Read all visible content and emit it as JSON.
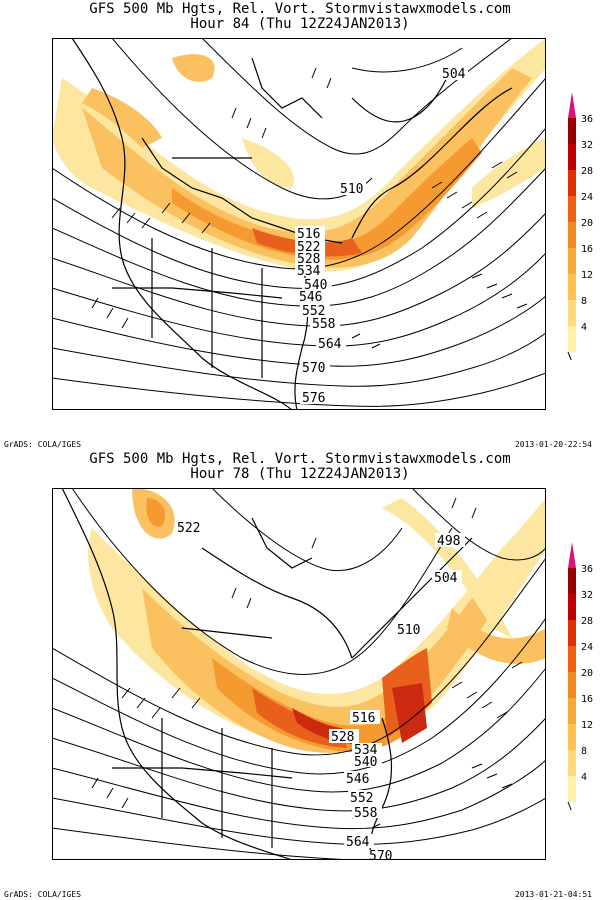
{
  "panels": [
    {
      "title_line1": "GFS 500 Mb Hgts, Rel. Vort. Stormvistawxmodels.com",
      "title_line2": "Hour 84 (Thu 12Z24JAN2013)",
      "footer_left": "GrADS: COLA/IGES",
      "footer_right": "2013-01-20-22:54",
      "contour_labels": [
        "504",
        "510",
        "516",
        "522",
        "528",
        "534",
        "540",
        "546",
        "552",
        "558",
        "564",
        "570",
        "576"
      ]
    },
    {
      "title_line1": "GFS 500 Mb Hgts, Rel. Vort. Stormvistawxmodels.com",
      "title_line2": "Hour 78 (Thu 12Z24JAN2013)",
      "footer_left": "GrADS: COLA/IGES",
      "footer_right": "2013-01-21-04:51",
      "contour_labels": [
        "498",
        "504",
        "510",
        "516",
        "522",
        "528",
        "534",
        "540",
        "546",
        "552",
        "558",
        "564",
        "570"
      ]
    }
  ],
  "colorbar": {
    "labels": [
      "36",
      "32",
      "28",
      "24",
      "20",
      "16",
      "12",
      "8",
      "4"
    ],
    "colors": [
      "#990000",
      "#c00000",
      "#e03000",
      "#f06010",
      "#f08a20",
      "#f8a838",
      "#ffc050",
      "#ffd878",
      "#fff0a8"
    ],
    "arrow_color": "#e0107a"
  },
  "shading_colors": {
    "light": "#fde6a0",
    "mid": "#fbc060",
    "orange": "#f59a30",
    "dark": "#e8601c",
    "red": "#cc2a10"
  }
}
